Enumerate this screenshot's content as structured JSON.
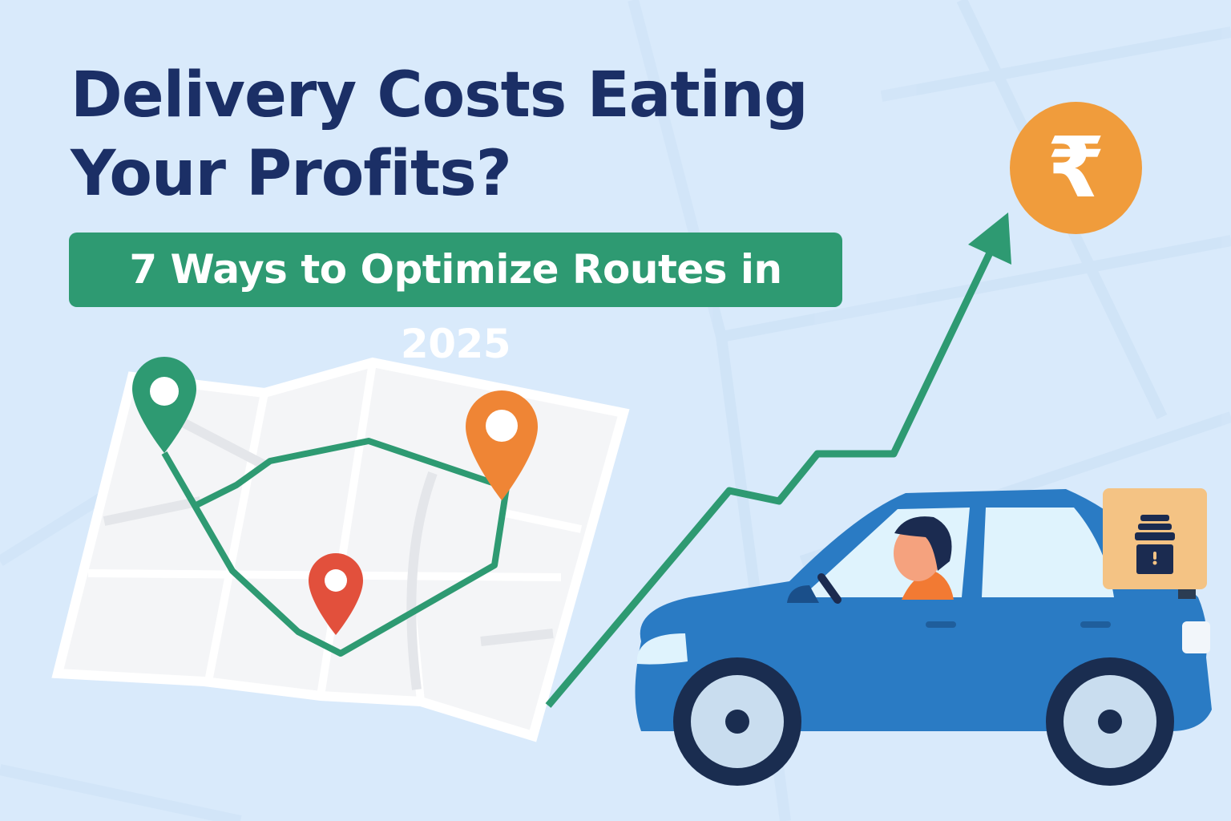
{
  "banner": {
    "title_line1": "Delivery Costs Eating",
    "title_line2": "Your Profits?",
    "subtitle": "7 Ways to Optimize Routes in 2025",
    "currency_symbol": "₹"
  },
  "colors": {
    "background": "#d9eafb",
    "title": "#1b2f66",
    "accent_green": "#2e9a72",
    "coin_orange": "#f09c3c",
    "car_blue": "#2a7bc4",
    "pin_red": "#e2503c",
    "pin_orange": "#ef8535",
    "box": "#f4c384"
  },
  "icons": [
    "map-icon",
    "map-pin-icon",
    "growth-arrow-icon",
    "rupee-coin-icon",
    "delivery-car-icon",
    "driver-icon",
    "package-box-icon"
  ]
}
